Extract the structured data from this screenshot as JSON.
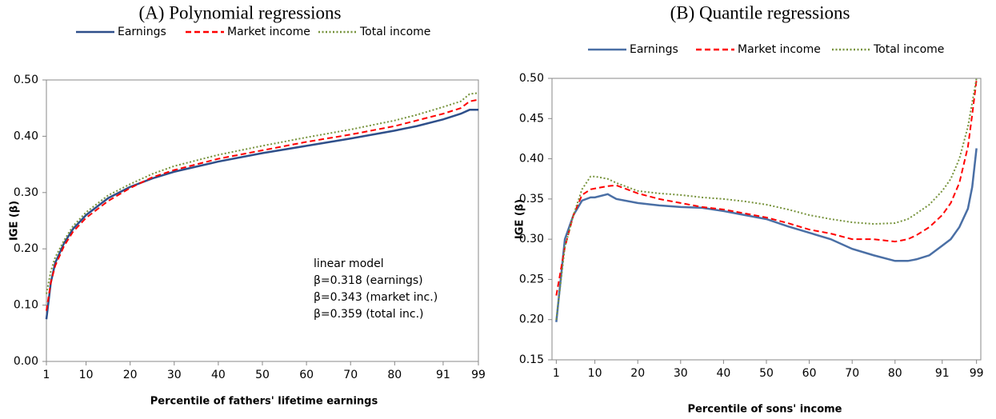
{
  "chart_data": [
    {
      "type": "line",
      "title": "(A) Polynomial regressions",
      "x_label": "Percentile of fathers' lifetime earnings",
      "y_label": "IGE (β)",
      "x": [
        1,
        2,
        3,
        5,
        7,
        10,
        15,
        20,
        25,
        30,
        40,
        50,
        60,
        70,
        80,
        85,
        91,
        95,
        97,
        99
      ],
      "series": [
        {
          "name": "Earnings",
          "color": "#2e4f8a",
          "style": "solid",
          "values": [
            0.075,
            0.14,
            0.175,
            0.21,
            0.235,
            0.26,
            0.29,
            0.31,
            0.325,
            0.337,
            0.355,
            0.37,
            0.383,
            0.396,
            0.41,
            0.418,
            0.43,
            0.44,
            0.447,
            0.447
          ]
        },
        {
          "name": "Market income",
          "color": "#ff0000",
          "style": "dashed",
          "values": [
            0.09,
            0.14,
            0.17,
            0.205,
            0.23,
            0.255,
            0.285,
            0.308,
            0.327,
            0.34,
            0.36,
            0.375,
            0.39,
            0.403,
            0.418,
            0.428,
            0.44,
            0.45,
            0.462,
            0.465
          ]
        },
        {
          "name": "Total income",
          "color": "#77933c",
          "style": "dotted",
          "values": [
            0.12,
            0.16,
            0.185,
            0.215,
            0.24,
            0.265,
            0.295,
            0.315,
            0.333,
            0.347,
            0.367,
            0.383,
            0.398,
            0.412,
            0.428,
            0.438,
            0.452,
            0.462,
            0.475,
            0.477
          ]
        }
      ],
      "xlim": [
        1,
        99
      ],
      "xticks": [
        1,
        10,
        20,
        30,
        40,
        50,
        60,
        70,
        80,
        91,
        99
      ],
      "ylim": [
        0,
        0.5
      ],
      "yticks": [
        {
          "value": 0,
          "label": "0.00"
        },
        {
          "value": 0.1,
          "label": "0.10"
        },
        {
          "value": 0.2,
          "label": "0.20"
        },
        {
          "value": 0.3,
          "label": "0.30"
        },
        {
          "value": 0.4,
          "label": "0.40"
        },
        {
          "value": 0.5,
          "label": "0.50"
        }
      ],
      "annotation": [
        "linear model",
        "β=0.318 (earnings)",
        "β=0.343 (market inc.)",
        "β=0.359 (total inc.)"
      ],
      "grid": false
    },
    {
      "type": "line",
      "title": "(B) Quantile regressions",
      "x_label": "Percentile of sons' income",
      "y_label": "IGE (β)",
      "x": [
        1,
        3,
        5,
        7,
        9,
        10,
        13,
        15,
        20,
        25,
        30,
        35,
        40,
        45,
        50,
        55,
        60,
        65,
        70,
        75,
        80,
        83,
        85,
        88,
        91,
        93,
        95,
        97,
        98,
        99
      ],
      "series": [
        {
          "name": "Earnings",
          "color": "#4a6fa5",
          "style": "solid",
          "values": [
            0.197,
            0.3,
            0.33,
            0.348,
            0.352,
            0.352,
            0.356,
            0.35,
            0.345,
            0.342,
            0.34,
            0.339,
            0.335,
            0.33,
            0.325,
            0.316,
            0.308,
            0.3,
            0.288,
            0.28,
            0.273,
            0.273,
            0.275,
            0.28,
            0.292,
            0.3,
            0.315,
            0.338,
            0.365,
            0.413
          ]
        },
        {
          "name": "Market income",
          "color": "#ff0000",
          "style": "dashed",
          "values": [
            0.23,
            0.29,
            0.33,
            0.355,
            0.362,
            0.363,
            0.366,
            0.367,
            0.357,
            0.35,
            0.345,
            0.34,
            0.337,
            0.332,
            0.327,
            0.32,
            0.312,
            0.307,
            0.3,
            0.3,
            0.297,
            0.3,
            0.305,
            0.315,
            0.33,
            0.345,
            0.37,
            0.415,
            0.455,
            0.498
          ]
        },
        {
          "name": "Total income",
          "color": "#77933c",
          "style": "dotted",
          "values": [
            0.2,
            0.29,
            0.33,
            0.362,
            0.378,
            0.378,
            0.375,
            0.37,
            0.36,
            0.357,
            0.355,
            0.352,
            0.35,
            0.347,
            0.343,
            0.337,
            0.33,
            0.325,
            0.321,
            0.319,
            0.32,
            0.325,
            0.332,
            0.343,
            0.36,
            0.375,
            0.4,
            0.44,
            0.47,
            0.5
          ]
        }
      ],
      "xlim": [
        0,
        100
      ],
      "xticks": [
        1,
        10,
        20,
        30,
        40,
        50,
        60,
        70,
        80,
        91,
        99
      ],
      "ylim": [
        0.15,
        0.5
      ],
      "yticks": [
        {
          "value": 0.15,
          "label": "0.15"
        },
        {
          "value": 0.2,
          "label": "0.20"
        },
        {
          "value": 0.25,
          "label": "0.25"
        },
        {
          "value": 0.3,
          "label": "0.30"
        },
        {
          "value": 0.35,
          "label": "0.35"
        },
        {
          "value": 0.4,
          "label": "0.40"
        },
        {
          "value": 0.45,
          "label": "0.45"
        },
        {
          "value": 0.5,
          "label": "0.50"
        }
      ],
      "grid": false
    }
  ]
}
